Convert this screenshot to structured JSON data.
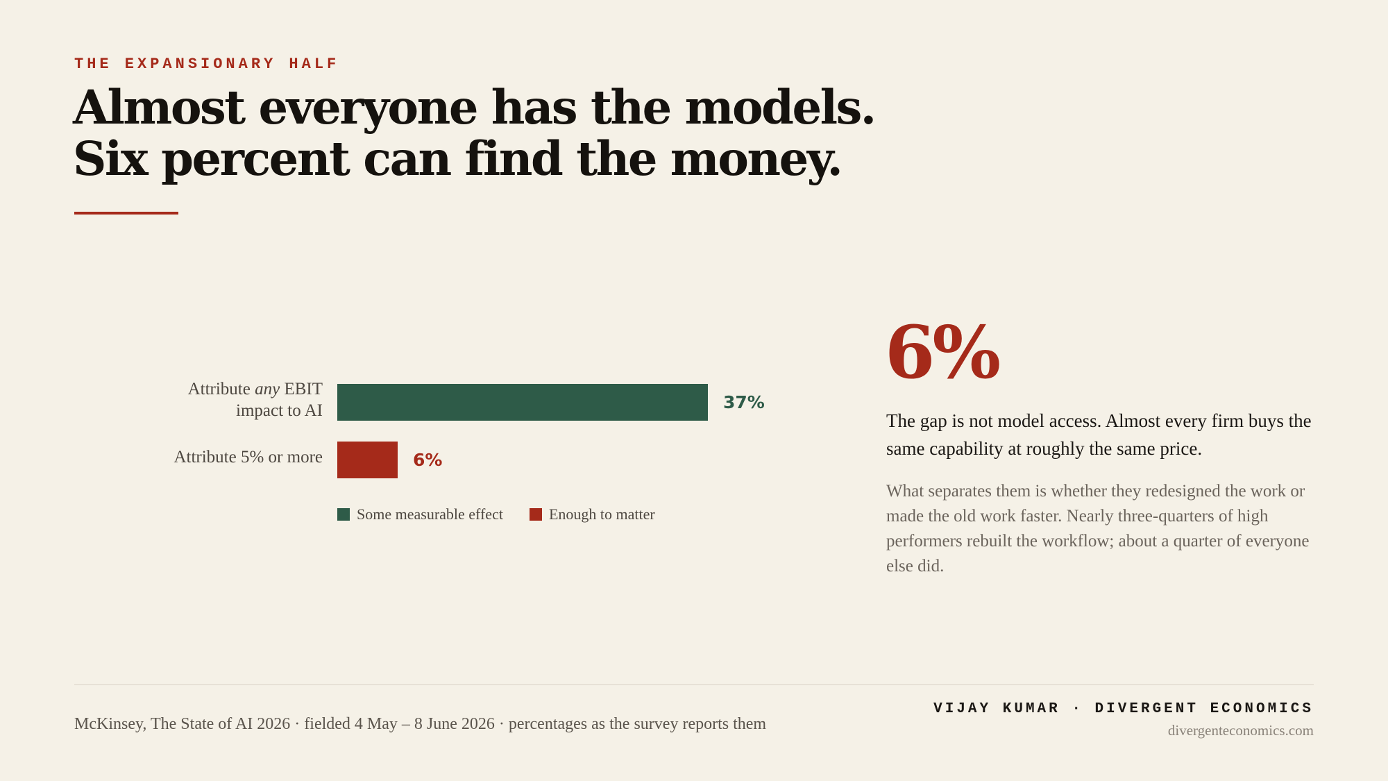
{
  "header": {
    "kicker": "THE EXPANSIONARY HALF",
    "headline_line1": "Almost everyone has the models.",
    "headline_line2": "Six percent can find the money."
  },
  "chart_data": {
    "type": "bar",
    "orientation": "horizontal",
    "categories": [
      {
        "pre": "Attribute ",
        "em": "any",
        "post": " EBIT",
        "line2": "impact to AI"
      },
      {
        "pre": "Attribute 5% or more",
        "em": "",
        "post": "",
        "line2": ""
      }
    ],
    "values": [
      37,
      6
    ],
    "value_labels": [
      "37%",
      "6%"
    ],
    "colors": [
      "#2e5b48",
      "#a52a1a"
    ],
    "xlim": [
      0,
      37
    ],
    "legend": [
      {
        "label": "Some measurable effect",
        "color": "#2e5b48"
      },
      {
        "label": "Enough to matter",
        "color": "#a52a1a"
      }
    ],
    "legend_position": "bottom",
    "grid": false
  },
  "callout": {
    "number": "6%",
    "lead": "The gap is not model access. Almost every firm buys the same capability at roughly the same price.",
    "body": "What separates them is whether they redesigned the work or made the old work faster. Nearly three-quarters of high performers rebuilt the workflow; about a quarter of everyone else did."
  },
  "footer": {
    "source": "McKinsey, The State of AI 2026 · fielded 4 May – 8 June 2026 · percentages as the survey reports them",
    "byline": "VIJAY KUMAR · DIVERGENT ECONOMICS",
    "site": "divergenteconomics.com"
  }
}
